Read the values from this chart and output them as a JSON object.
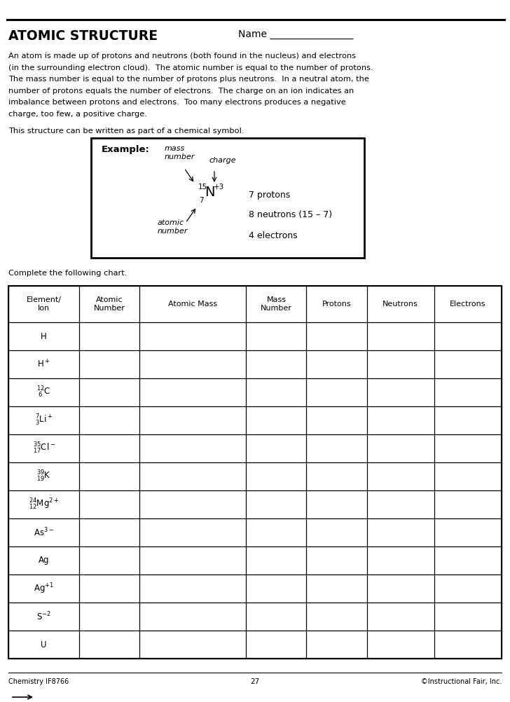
{
  "bg_color": "#ffffff",
  "page_width": 7.28,
  "page_height": 10.02,
  "title": "ATOMIC STRUCTURE",
  "name_label": "Name _________________",
  "body_text_lines": [
    "An atom is made up of protons and neutrons (both found in the nucleus) and electrons",
    "(in the surrounding electron cloud).  The atomic number is equal to the number of protons.",
    "The mass number is equal to the number of protons plus neutrons.  In a neutral atom, the",
    "number of protons equals the number of electrons.  The charge on an ion indicates an",
    "imbalance between protons and electrons.  Too many electrons produces a negative",
    "charge, too few, a positive charge."
  ],
  "this_structure_text": "This structure can be written as part of a chemical symbol.",
  "example_label": "Example:",
  "mass_number_label": "mass\nnumber",
  "charge_label": "charge",
  "right_text_line1": "7 protons",
  "right_text_line2": "8 neutrons (15 – 7)",
  "right_text_line3": "4 electrons",
  "atomic_number_label": "atomic\nnumber",
  "complete_chart_text": "Complete the following chart.",
  "table_headers": [
    "Element/\nIon",
    "Atomic\nNumber",
    "Atomic Mass",
    "Mass\nNumber",
    "Protons",
    "Neutrons",
    "Electrons"
  ],
  "col_widths_rel": [
    1.0,
    0.85,
    1.5,
    0.85,
    0.85,
    0.95,
    0.95
  ],
  "footer_left": "Chemistry IF8766",
  "footer_center": "27",
  "footer_right": "©Instructional Fair, Inc."
}
